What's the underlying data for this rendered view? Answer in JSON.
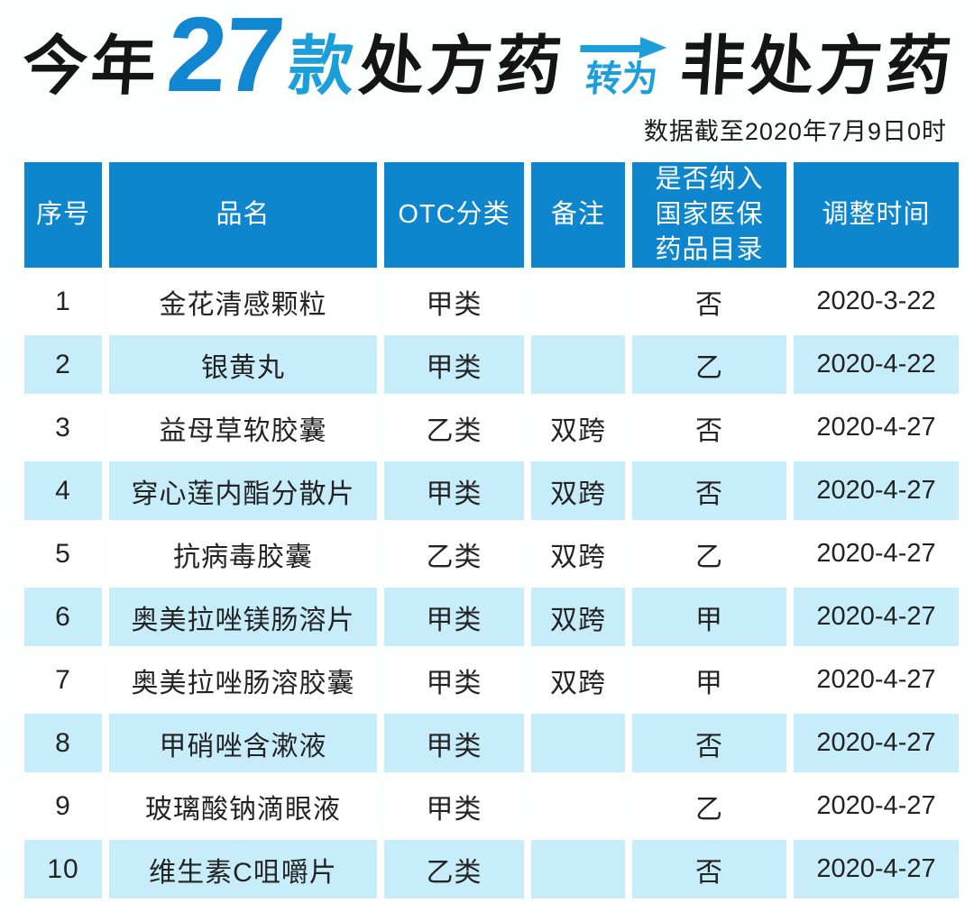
{
  "title": {
    "prefix": "今年",
    "count": "27",
    "count_suffix": "款",
    "left_term": "处方药",
    "arrow_label": "转为",
    "right_term": "非处方药"
  },
  "subtitle": "数据截至2020年7月9日0时",
  "colors": {
    "header_blue": "#0e86cd",
    "stripe_blue": "#c6edf9",
    "count_blue": "#1287d1",
    "accent_blue": "#1b9ed9",
    "title_black": "#151515"
  },
  "chart_data": {
    "type": "table",
    "title": "今年27款处方药转为非处方药",
    "caption": "数据截至2020年7月9日0时",
    "columns": [
      "序号",
      "品名",
      "OTC分类",
      "备注",
      "是否纳入\n国家医保\n药品目录",
      "调整时间"
    ],
    "rows": [
      [
        "1",
        "金花清感颗粒",
        "甲类",
        "",
        "否",
        "2020-3-22"
      ],
      [
        "2",
        "银黄丸",
        "甲类",
        "",
        "乙",
        "2020-4-22"
      ],
      [
        "3",
        "益母草软胶囊",
        "乙类",
        "双跨",
        "否",
        "2020-4-27"
      ],
      [
        "4",
        "穿心莲内酯分散片",
        "甲类",
        "双跨",
        "否",
        "2020-4-27"
      ],
      [
        "5",
        "抗病毒胶囊",
        "乙类",
        "双跨",
        "乙",
        "2020-4-27"
      ],
      [
        "6",
        "奥美拉唑镁肠溶片",
        "甲类",
        "双跨",
        "甲",
        "2020-4-27"
      ],
      [
        "7",
        "奥美拉唑肠溶胶囊",
        "甲类",
        "双跨",
        "甲",
        "2020-4-27"
      ],
      [
        "8",
        "甲硝唑含漱液",
        "甲类",
        "",
        "否",
        "2020-4-27"
      ],
      [
        "9",
        "玻璃酸钠滴眼液",
        "甲类",
        "",
        "乙",
        "2020-4-27"
      ],
      [
        "10",
        "维生素C咀嚼片",
        "乙类",
        "",
        "否",
        "2020-4-27"
      ]
    ]
  }
}
